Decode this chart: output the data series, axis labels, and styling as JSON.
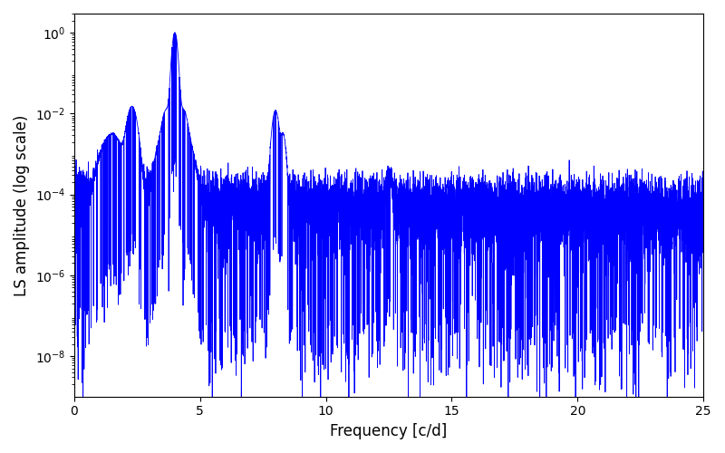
{
  "line_color": "#0000ff",
  "xlabel": "Frequency [c/d]",
  "ylabel": "LS amplitude (log scale)",
  "xlim": [
    0,
    25
  ],
  "ylim": [
    1e-09,
    3.0
  ],
  "line_width": 0.6,
  "background_color": "#ffffff",
  "title": "",
  "seed": 12345,
  "peak1_freq": 4.0,
  "peak1_amp": 1.0,
  "peak2_freq": 8.0,
  "peak2_amp": 0.012,
  "peak3_freq": 12.5,
  "peak3_amp": 0.0003,
  "noise_floor_base": 0.0001,
  "yticks": [
    1e-08,
    1e-06,
    0.0001,
    0.01,
    1.0
  ]
}
